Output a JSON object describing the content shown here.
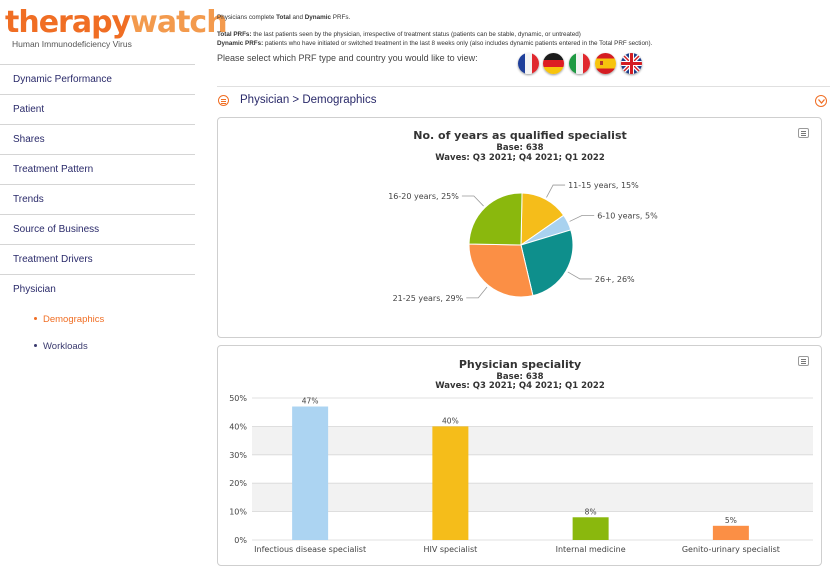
{
  "logo": {
    "part1": "therapy",
    "part2": "watch",
    "subtitle": "Human Immunodeficiency Virus"
  },
  "nav": {
    "items": [
      {
        "label": "Dynamic Performance"
      },
      {
        "label": "Patient"
      },
      {
        "label": "Shares"
      },
      {
        "label": "Treatment Pattern"
      },
      {
        "label": "Trends"
      },
      {
        "label": "Source of Business"
      },
      {
        "label": "Treatment Drivers"
      },
      {
        "label": "Physician"
      }
    ],
    "subitems": [
      {
        "label": "Demographics",
        "active": true
      },
      {
        "label": "Workloads",
        "active": false
      }
    ]
  },
  "info": {
    "line1_pre": "Physicians complete ",
    "line1_total": "Total",
    "line1_mid": " and ",
    "line1_dynamic": "Dynamic",
    "line1_post": " PRFs.",
    "total_label": "Total PRFs:",
    "total_text": " the last patients seen by the physician, irrespective of treatment status (patients can be stable, dynamic, or untreated)",
    "dynamic_label": "Dynamic PRFs:",
    "dynamic_text": " patients who have initiated or switched treatment in the last 8 weeks only (also includes dynamic patients entered in the Total PRF section).",
    "prompt": "Please select which PRF type and country you would like to view:"
  },
  "flags": [
    "france-flag",
    "germany-flag",
    "italy-flag",
    "spain-flag",
    "uk-flag"
  ],
  "section": {
    "title": "Physician > Demographics"
  },
  "colors": {
    "accent": "#f06e24",
    "nav": "#2a2a6a"
  },
  "chart_data": [
    {
      "type": "pie",
      "title": "No. of years as qualified specialist",
      "subtitle1": "Base: 638",
      "subtitle2": "Waves: Q3 2021; Q4 2021; Q1 2022",
      "slices": [
        {
          "label": "11-15 years, 15%",
          "value": 15,
          "color": "#f5bd1a"
        },
        {
          "label": "6-10 years, 5%",
          "value": 5,
          "color": "#a9d2ef"
        },
        {
          "label": "26+, 26%",
          "value": 26,
          "color": "#0e8f8c"
        },
        {
          "label": "21-25 years, 29%",
          "value": 29,
          "color": "#fb8f45"
        },
        {
          "label": "16-20 years, 25%",
          "value": 25,
          "color": "#8ab80d"
        }
      ]
    },
    {
      "type": "bar",
      "title": "Physician speciality",
      "subtitle1": "Base: 638",
      "subtitle2": "Waves: Q3 2021; Q4 2021; Q1 2022",
      "categories": [
        "Infectious disease specialist",
        "HIV specialist",
        "Internal medicine",
        "Genito-urinary specialist"
      ],
      "values": [
        47,
        40,
        8,
        5
      ],
      "value_labels": [
        "47%",
        "40%",
        "8%",
        "5%"
      ],
      "colors": [
        "#acd4f2",
        "#f5bd1a",
        "#8ab80d",
        "#fb8f45"
      ],
      "ylim": [
        0,
        50
      ],
      "yticks": [
        "0%",
        "10%",
        "20%",
        "30%",
        "40%",
        "50%"
      ]
    }
  ]
}
